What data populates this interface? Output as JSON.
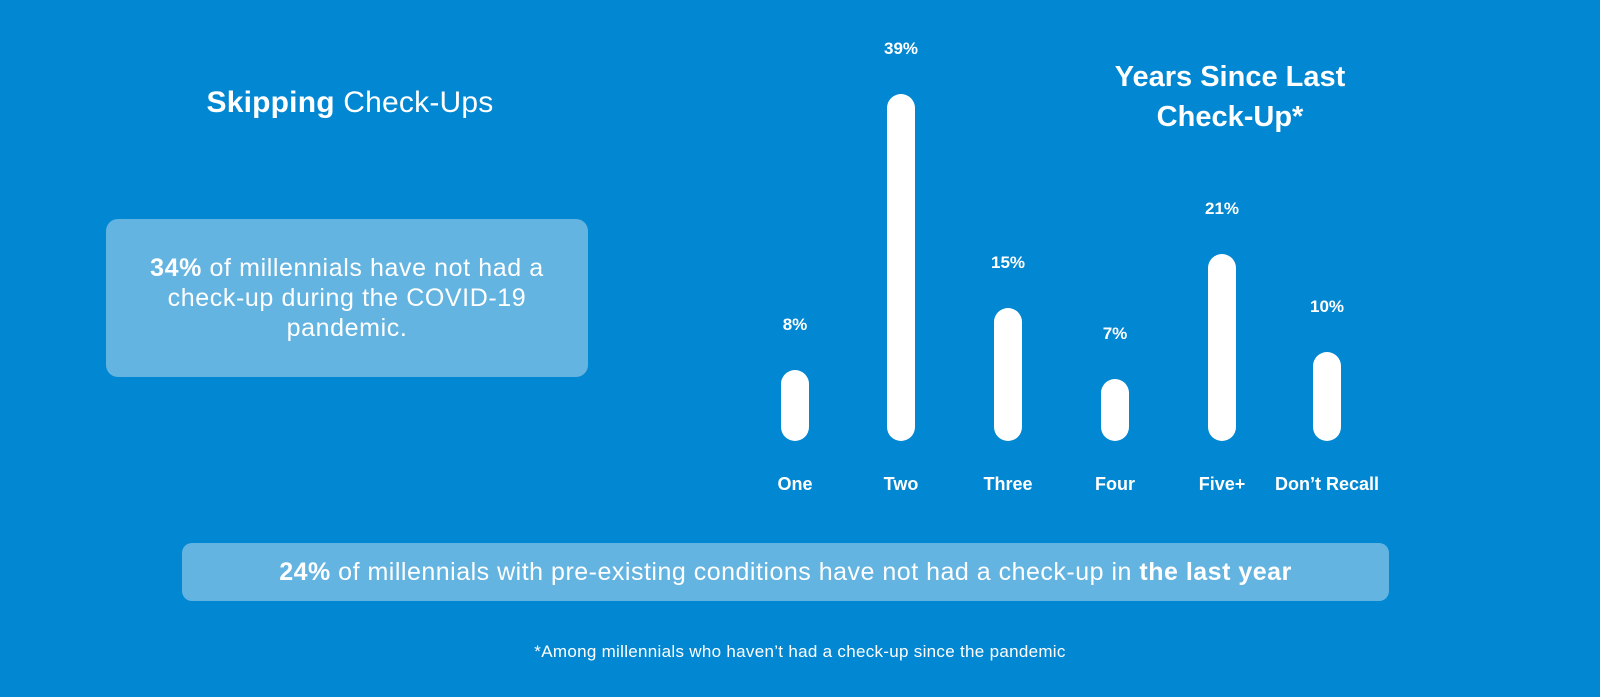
{
  "left_panel": {
    "title_bold": "Skipping",
    "title_regular": " Check-Ups",
    "stat_box": {
      "bold": "34%",
      "text": " of millennials have not had a check-up during the COVID-19 pandemic."
    }
  },
  "banner": {
    "bold_prefix": "24%",
    "text": " of millennials with pre-existing conditions have not had a check-up in ",
    "bold_suffix": "the last year"
  },
  "footnote": "*Among millennials who haven’t had a check-up since the pandemic",
  "colors": {
    "background": "#0287d2",
    "panel": "#64b4e1",
    "bar": "#ffffff",
    "text": "#ffffff"
  },
  "chart_data": {
    "type": "bar",
    "title": "Years Since Last Check-Up*",
    "categories": [
      "One",
      "Two",
      "Three",
      "Four",
      "Five+",
      "Don’t Recall"
    ],
    "values": [
      8,
      39,
      15,
      7,
      21,
      10
    ],
    "value_labels": [
      "8%",
      "39%",
      "15%",
      "7%",
      "21%",
      "10%"
    ],
    "unit": "%",
    "xlabel": "",
    "ylabel": "",
    "ylim": [
      0,
      40
    ],
    "grid": false,
    "legend": "none",
    "bar_style": "rounded-pill"
  }
}
